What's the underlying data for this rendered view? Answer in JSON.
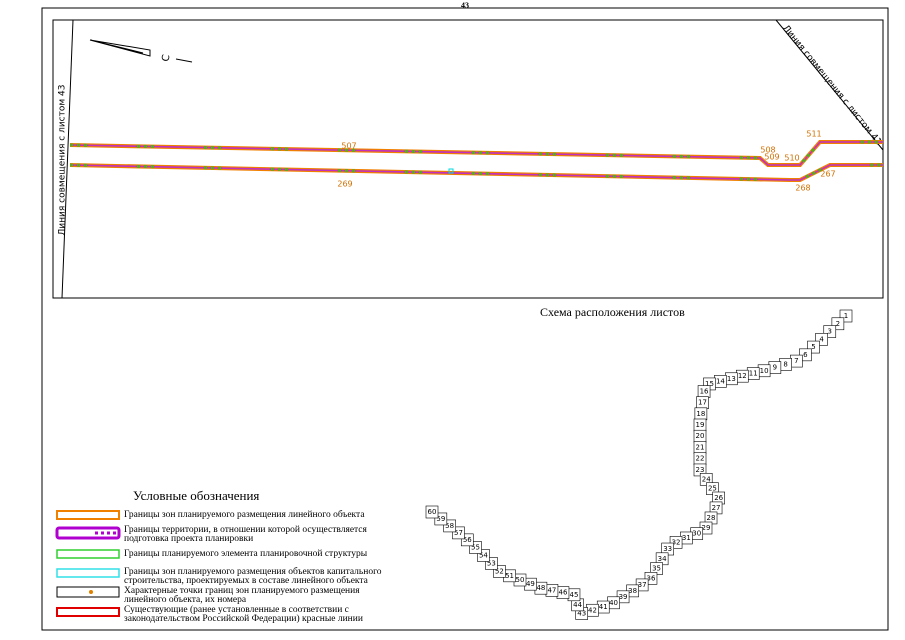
{
  "page_number": "43",
  "map": {
    "north_label": "С",
    "left_join_label": "Линия совмещения с листом 43",
    "right_join_label": "Линия совмещения с листом 41",
    "point_labels": [
      "507",
      "508",
      "509",
      "510",
      "511",
      "269",
      "268",
      "267"
    ]
  },
  "index": {
    "title": "Схема расположения листов",
    "sheets": [
      "1",
      "2",
      "3",
      "4",
      "5",
      "6",
      "7",
      "8",
      "9",
      "10",
      "11",
      "12",
      "13",
      "14",
      "15",
      "16",
      "17",
      "18",
      "19",
      "20",
      "21",
      "22",
      "23",
      "24",
      "25",
      "26",
      "27",
      "28",
      "29",
      "30",
      "31",
      "32",
      "33",
      "34",
      "35",
      "36",
      "37",
      "38",
      "39",
      "40",
      "41",
      "42",
      "43",
      "44",
      "45",
      "46",
      "47",
      "48",
      "49",
      "50",
      "51",
      "52",
      "53",
      "54",
      "55",
      "56",
      "57",
      "58",
      "59",
      "60"
    ]
  },
  "legend": {
    "title": "Условные обозначения",
    "items": [
      "Границы зон планируемого размещения линейного объекта",
      "Границы территории, в отношении которой осуществляется подготовка проекта планировки",
      "Границы планируемого элемента планировочной структуры",
      "Границы зон планируемого размещения объектов капитального строительства, проектируемых в составе линейного объекта",
      "Характерные точки границ зон планируемого размещения линейного объекта, их номера",
      "Существующие (ранее установленные в соответствии с законодательством Российской Федерации) красные линии"
    ]
  }
}
